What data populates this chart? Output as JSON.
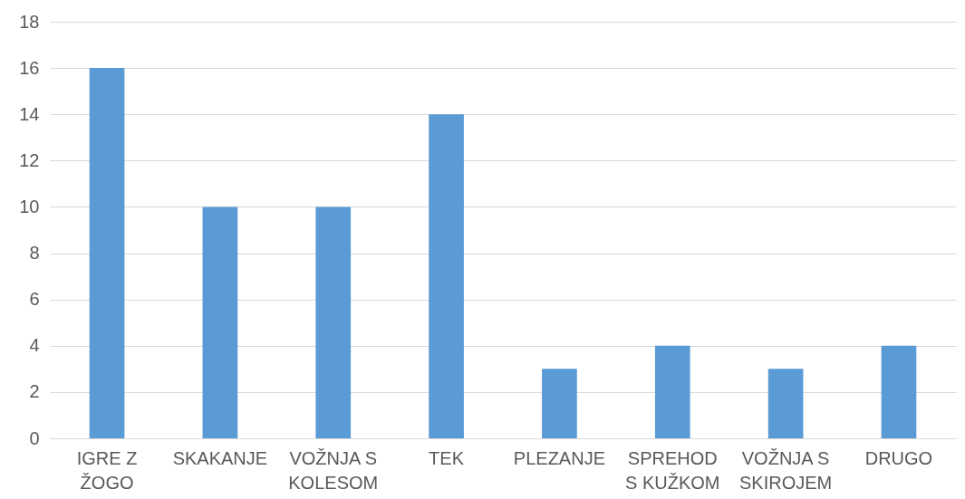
{
  "chart_data": {
    "type": "bar",
    "categories": [
      "IGRE Z\nŽOGO",
      "SKAKANJE",
      "VOŽNJA S\nKOLESOM",
      "TEK",
      "PLEZANJE",
      "SPREHOD\nS KUŽKOM",
      "VOŽNJA S\nSKIROJEM",
      "DRUGO"
    ],
    "values": [
      16,
      10,
      10,
      14,
      3,
      4,
      3,
      4
    ],
    "color": "#5b9bd5",
    "ylim": [
      0,
      18
    ],
    "yticks": [
      0,
      2,
      4,
      6,
      8,
      10,
      12,
      14,
      16,
      18
    ],
    "grid": "y"
  }
}
